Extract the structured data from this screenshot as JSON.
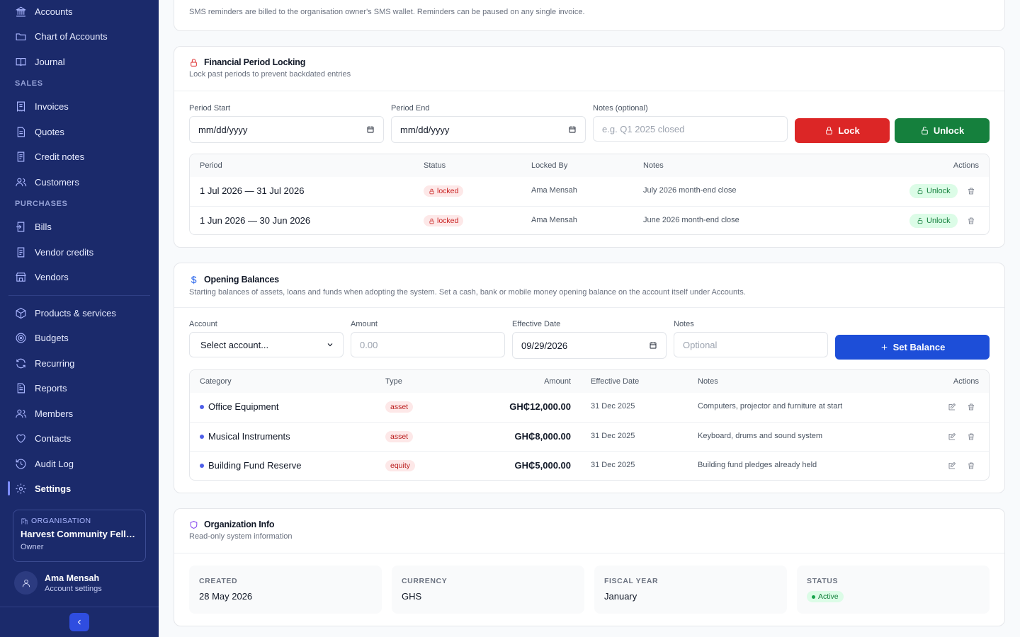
{
  "sidebar": {
    "nav_top": [
      {
        "label": "Accounts",
        "icon": "bank-icon"
      },
      {
        "label": "Chart of Accounts",
        "icon": "folder-icon"
      },
      {
        "label": "Journal",
        "icon": "book-icon"
      }
    ],
    "section_sales": "SALES",
    "nav_sales": [
      {
        "label": "Invoices",
        "icon": "receipt-icon"
      },
      {
        "label": "Quotes",
        "icon": "document-icon"
      },
      {
        "label": "Credit notes",
        "icon": "document-icon"
      },
      {
        "label": "Customers",
        "icon": "users-icon"
      }
    ],
    "section_purchases": "PURCHASES",
    "nav_purchases": [
      {
        "label": "Bills",
        "icon": "bill-icon"
      },
      {
        "label": "Vendor credits",
        "icon": "document-icon"
      },
      {
        "label": "Vendors",
        "icon": "store-icon"
      }
    ],
    "nav_other": [
      {
        "label": "Products & services",
        "icon": "box-icon"
      },
      {
        "label": "Budgets",
        "icon": "target-icon"
      },
      {
        "label": "Recurring",
        "icon": "refresh-icon"
      },
      {
        "label": "Reports",
        "icon": "report-icon"
      },
      {
        "label": "Members",
        "icon": "users-icon"
      },
      {
        "label": "Contacts",
        "icon": "heart-icon"
      },
      {
        "label": "Audit Log",
        "icon": "history-icon"
      },
      {
        "label": "Settings",
        "icon": "gear-icon"
      }
    ],
    "active_item": "Settings",
    "org": {
      "label": "ORGANISATION",
      "name": "Harvest Community Fello...",
      "role": "Owner"
    },
    "user": {
      "name": "Ama Mensah",
      "sub": "Account settings"
    }
  },
  "sms_note": "SMS reminders are billed to the organisation owner's SMS wallet. Reminders can be paused on any single invoice.",
  "period_locking": {
    "title": "Financial Period Locking",
    "subtitle": "Lock past periods to prevent backdated entries",
    "period_start_label": "Period Start",
    "period_start_value": "mm/dd/yyyy",
    "period_end_label": "Period End",
    "period_end_value": "mm/dd/yyyy",
    "notes_label": "Notes (optional)",
    "notes_placeholder": "e.g. Q1 2025 closed",
    "lock_button": "Lock",
    "unlock_button": "Unlock",
    "columns": [
      "Period",
      "Status",
      "Locked By",
      "Notes",
      "Actions"
    ],
    "rows": [
      {
        "period": "1 Jul 2026 — 31 Jul 2026",
        "status": "locked",
        "locked_by": "Ama Mensah",
        "notes": "July 2026 month-end close",
        "action": "Unlock"
      },
      {
        "period": "1 Jun 2026 — 30 Jun 2026",
        "status": "locked",
        "locked_by": "Ama Mensah",
        "notes": "June 2026 month-end close",
        "action": "Unlock"
      }
    ]
  },
  "opening_balances": {
    "title": "Opening Balances",
    "subtitle": "Starting balances of assets, loans and funds when adopting the system. Set a cash, bank or mobile money opening balance on the account itself under Accounts.",
    "account_label": "Account",
    "account_value": "Select account...",
    "amount_label": "Amount",
    "amount_placeholder": "0.00",
    "date_label": "Effective Date",
    "date_value": "09/29/2026",
    "notes_label": "Notes",
    "notes_placeholder": "Optional",
    "set_button": "Set Balance",
    "columns": [
      "Category",
      "Type",
      "Amount",
      "Effective Date",
      "Notes",
      "Actions"
    ],
    "rows": [
      {
        "category": "Office Equipment",
        "type": "asset",
        "amount": "GH₵12,000.00",
        "date": "31 Dec 2025",
        "notes": "Computers, projector and furniture at start"
      },
      {
        "category": "Musical Instruments",
        "type": "asset",
        "amount": "GH₵8,000.00",
        "date": "31 Dec 2025",
        "notes": "Keyboard, drums and sound system"
      },
      {
        "category": "Building Fund Reserve",
        "type": "equity",
        "amount": "GH₵5,000.00",
        "date": "31 Dec 2025",
        "notes": "Building fund pledges already held"
      }
    ]
  },
  "org_info": {
    "title": "Organization Info",
    "subtitle": "Read-only system information",
    "tiles": [
      {
        "label": "CREATED",
        "value": "28 May 2026"
      },
      {
        "label": "CURRENCY",
        "value": "GHS"
      },
      {
        "label": "FISCAL YEAR",
        "value": "January"
      },
      {
        "label": "STATUS",
        "value": "Active"
      }
    ]
  },
  "colors": {
    "sidebar_bg": "#1b2a6b",
    "lock_red": "#dc2626",
    "unlock_green": "#15803d",
    "primary_blue": "#1d4ed8"
  }
}
